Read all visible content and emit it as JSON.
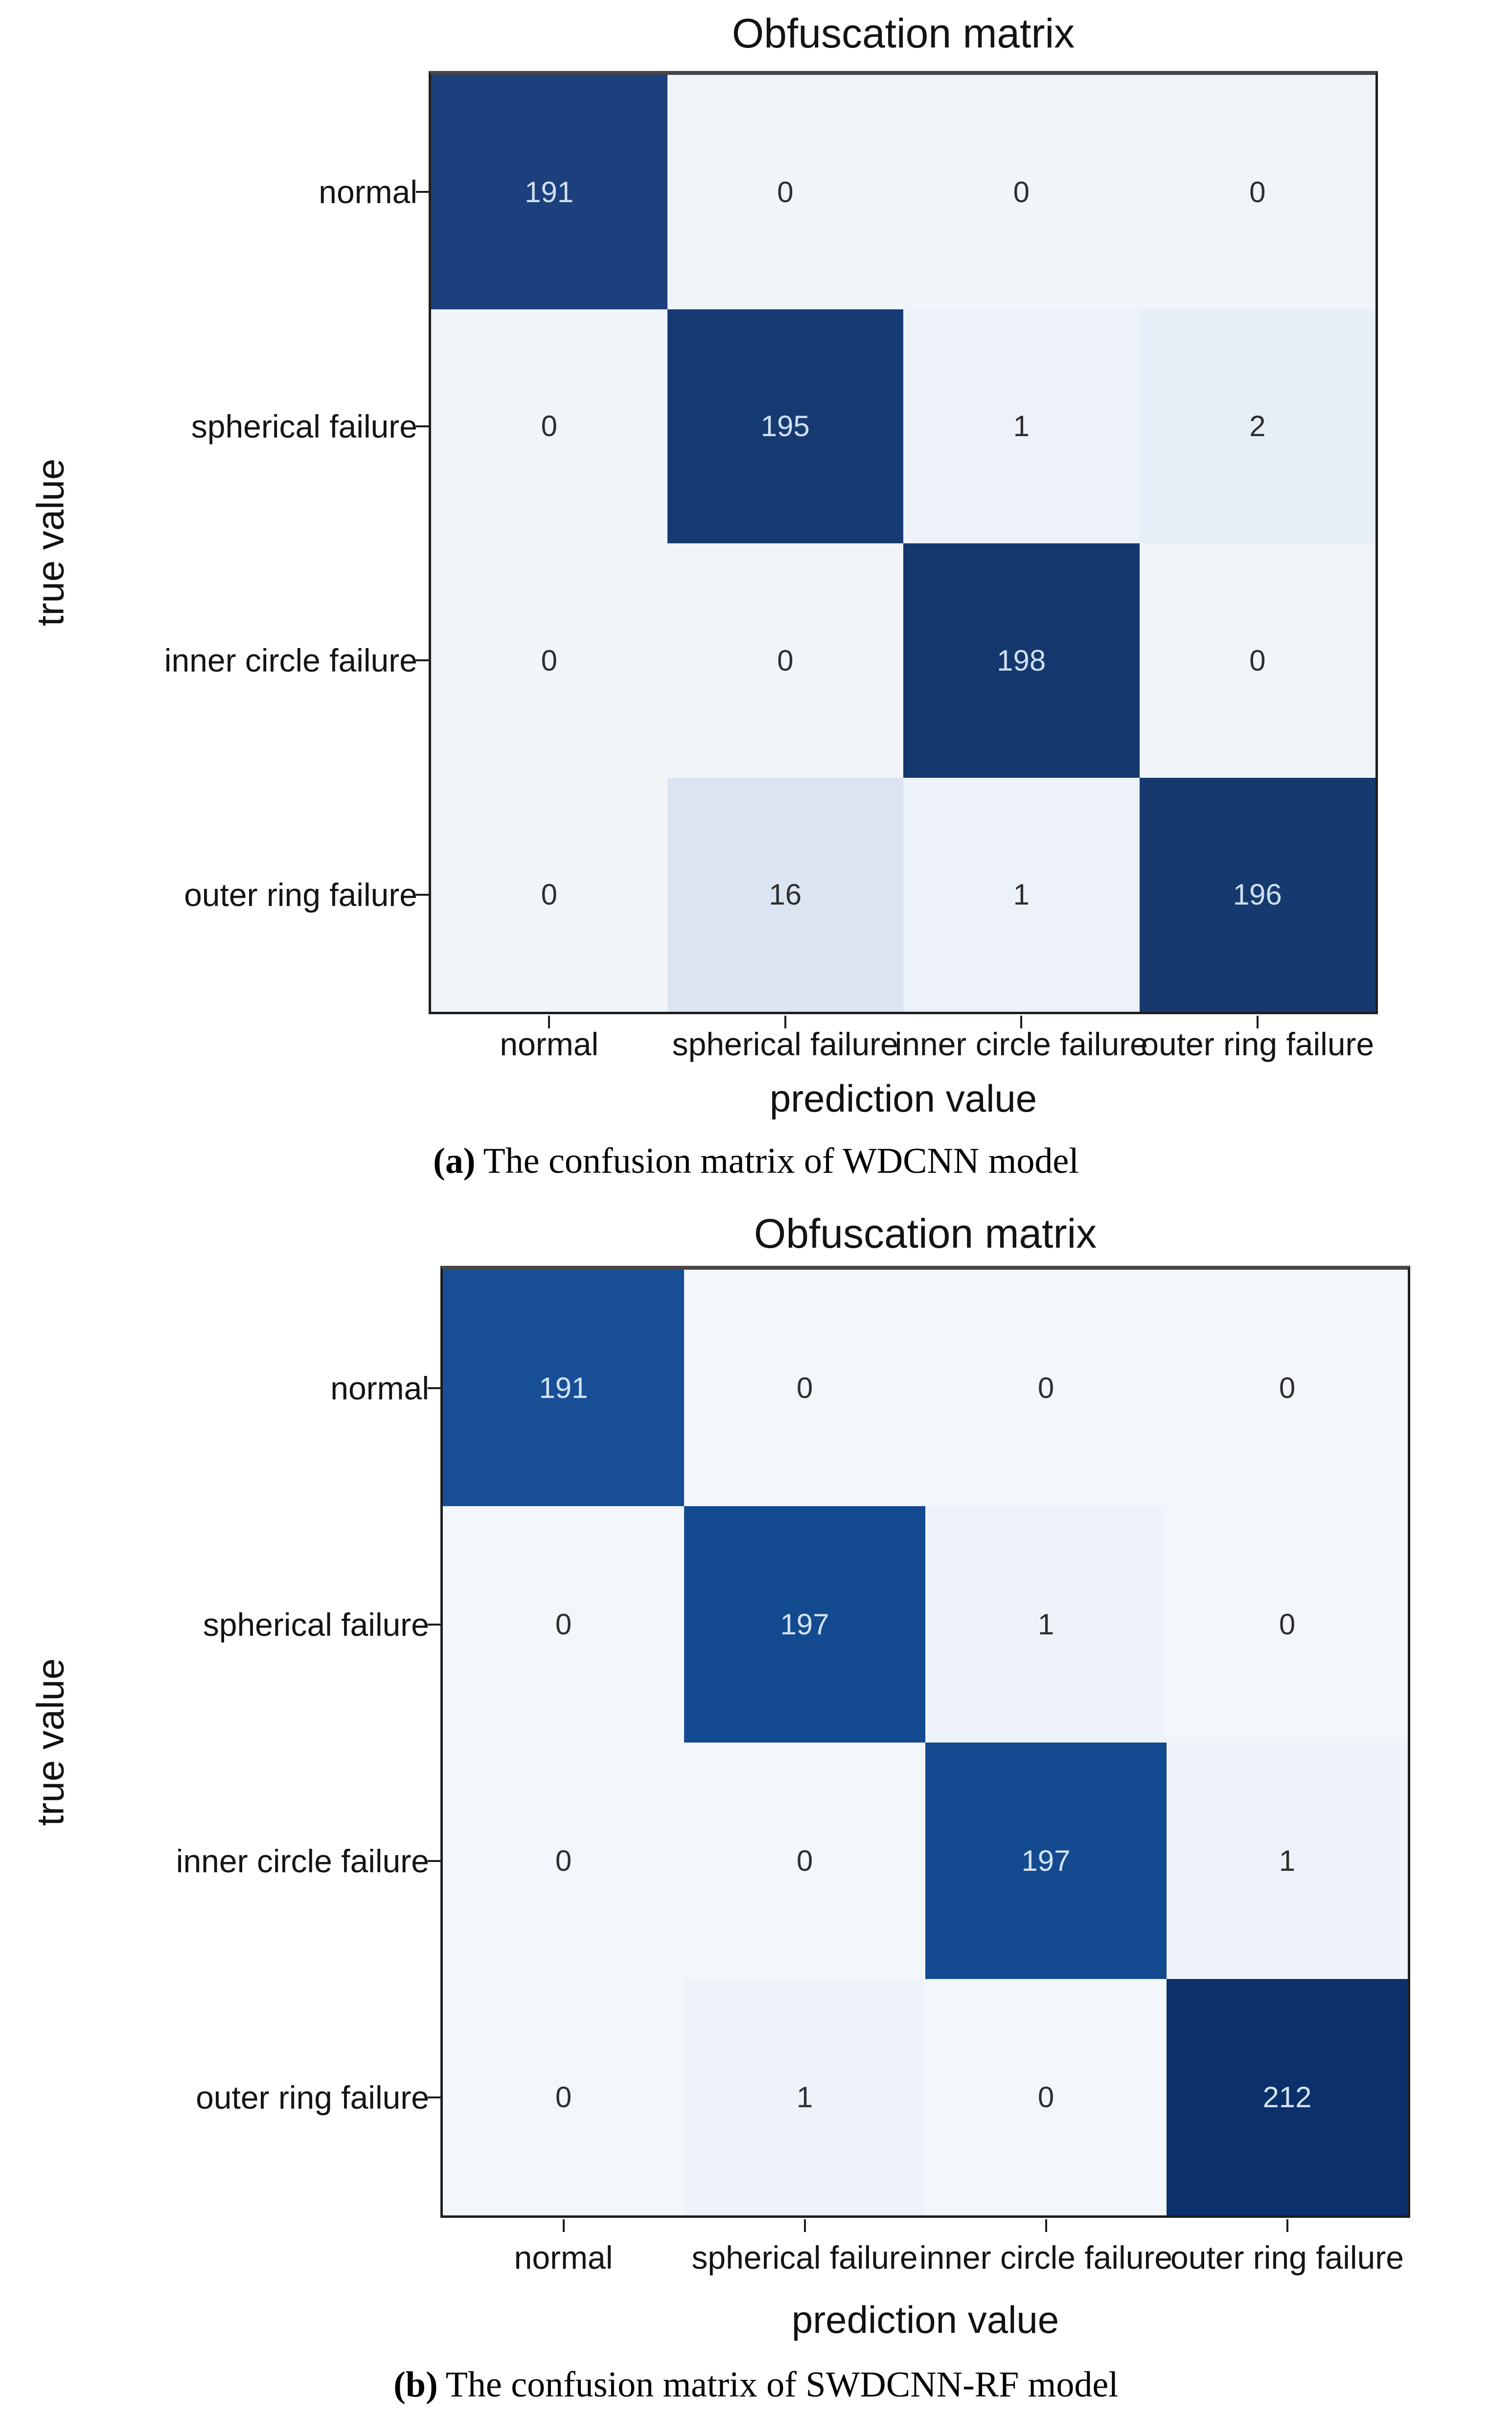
{
  "figures": [
    {
      "title": "Obfuscation matrix",
      "x_label": "prediction value",
      "y_label": "true value",
      "x_ticks": [
        "normal",
        "spherical failure",
        "inner circle failure",
        "outer ring failure"
      ],
      "y_ticks": [
        "normal",
        "spherical failure",
        "inner circle failure",
        "outer ring failure"
      ],
      "caption_marker": "(a)",
      "caption": "The confusion matrix of WDCNN model",
      "cells": [
        {
          "value": "191",
          "bg": "#1c3f7d",
          "fg": "#cfdff1"
        },
        {
          "value": "0",
          "bg": "#f1f5fa",
          "fg": "#2e2e2e"
        },
        {
          "value": "0",
          "bg": "#f1f5fa",
          "fg": "#2e2e2e"
        },
        {
          "value": "0",
          "bg": "#f1f5fa",
          "fg": "#2e2e2e"
        },
        {
          "value": "0",
          "bg": "#f1f5fa",
          "fg": "#2e2e2e"
        },
        {
          "value": "195",
          "bg": "#173a73",
          "fg": "#cfdff1"
        },
        {
          "value": "1",
          "bg": "#edf2f9",
          "fg": "#2e2e2e"
        },
        {
          "value": "2",
          "bg": "#e7eef7",
          "fg": "#2e2e2e"
        },
        {
          "value": "0",
          "bg": "#f1f5fa",
          "fg": "#2e2e2e"
        },
        {
          "value": "0",
          "bg": "#f1f5fa",
          "fg": "#2e2e2e"
        },
        {
          "value": "198",
          "bg": "#14386e",
          "fg": "#cfdff1"
        },
        {
          "value": "0",
          "bg": "#f1f5fa",
          "fg": "#2e2e2e"
        },
        {
          "value": "0",
          "bg": "#f1f5fa",
          "fg": "#2e2e2e"
        },
        {
          "value": "16",
          "bg": "#dbe5f1",
          "fg": "#2e2e2e"
        },
        {
          "value": "1",
          "bg": "#edf2f9",
          "fg": "#2e2e2e"
        },
        {
          "value": "196",
          "bg": "#16396f",
          "fg": "#cfdff1"
        }
      ]
    },
    {
      "title": "Obfuscation matrix",
      "x_label": "prediction value",
      "y_label": "true value",
      "x_ticks": [
        "normal",
        "spherical failure",
        "inner circle failure",
        "outer ring failure"
      ],
      "y_ticks": [
        "normal",
        "spherical failure",
        "inner circle failure",
        "outer ring failure"
      ],
      "caption_marker": "(b)",
      "caption": "The confusion matrix of SWDCNN-RF model",
      "cells": [
        {
          "value": "191",
          "bg": "#174e96",
          "fg": "#d3e3f4"
        },
        {
          "value": "0",
          "bg": "#f3f7fb",
          "fg": "#2e2e2e"
        },
        {
          "value": "0",
          "bg": "#f3f7fb",
          "fg": "#2e2e2e"
        },
        {
          "value": "0",
          "bg": "#f3f7fb",
          "fg": "#2e2e2e"
        },
        {
          "value": "0",
          "bg": "#f3f7fb",
          "fg": "#2e2e2e"
        },
        {
          "value": "197",
          "bg": "#134a90",
          "fg": "#d3e3f4"
        },
        {
          "value": "1",
          "bg": "#eef3fa",
          "fg": "#2e2e2e"
        },
        {
          "value": "0",
          "bg": "#f3f7fb",
          "fg": "#2e2e2e"
        },
        {
          "value": "0",
          "bg": "#f3f7fb",
          "fg": "#2e2e2e"
        },
        {
          "value": "0",
          "bg": "#f3f7fb",
          "fg": "#2e2e2e"
        },
        {
          "value": "197",
          "bg": "#134a90",
          "fg": "#d3e3f4"
        },
        {
          "value": "1",
          "bg": "#eef3fa",
          "fg": "#2e2e2e"
        },
        {
          "value": "0",
          "bg": "#f3f7fb",
          "fg": "#2e2e2e"
        },
        {
          "value": "1",
          "bg": "#eef3fa",
          "fg": "#2e2e2e"
        },
        {
          "value": "0",
          "bg": "#f3f7fb",
          "fg": "#2e2e2e"
        },
        {
          "value": "212",
          "bg": "#0b306b",
          "fg": "#d3e3f4"
        }
      ]
    }
  ],
  "colors": {
    "diagonal_dark_navy": "#14386e",
    "diagonal_bright_blue": "#174e96",
    "low_value_background": "#f1f5fa",
    "misclassified_16_tint": "#dbe5f1",
    "frame_top": "#474747",
    "frame_sides": "#1e1e1e"
  },
  "chart_data": [
    {
      "type": "heatmap",
      "title": "Obfuscation matrix",
      "xlabel": "prediction value",
      "ylabel": "true value",
      "x_categories": [
        "normal",
        "spherical failure",
        "inner circle failure",
        "outer ring failure"
      ],
      "y_categories": [
        "normal",
        "spherical failure",
        "inner circle failure",
        "outer ring failure"
      ],
      "matrix": [
        [
          191,
          0,
          0,
          0
        ],
        [
          0,
          195,
          1,
          2
        ],
        [
          0,
          0,
          198,
          0
        ],
        [
          0,
          16,
          1,
          196
        ]
      ],
      "colormap": "Blues",
      "legend_position": "none",
      "grid": false,
      "caption": "(a) The confusion matrix of WDCNN model"
    },
    {
      "type": "heatmap",
      "title": "Obfuscation matrix",
      "xlabel": "prediction value",
      "ylabel": "true value",
      "x_categories": [
        "normal",
        "spherical failure",
        "inner circle failure",
        "outer ring failure"
      ],
      "y_categories": [
        "normal",
        "spherical failure",
        "inner circle failure",
        "outer ring failure"
      ],
      "matrix": [
        [
          191,
          0,
          0,
          0
        ],
        [
          0,
          197,
          1,
          0
        ],
        [
          0,
          0,
          197,
          1
        ],
        [
          0,
          1,
          0,
          212
        ]
      ],
      "colormap": "Blues",
      "legend_position": "none",
      "grid": false,
      "caption": "(b) The confusion matrix of SWDCNN-RF model"
    }
  ]
}
